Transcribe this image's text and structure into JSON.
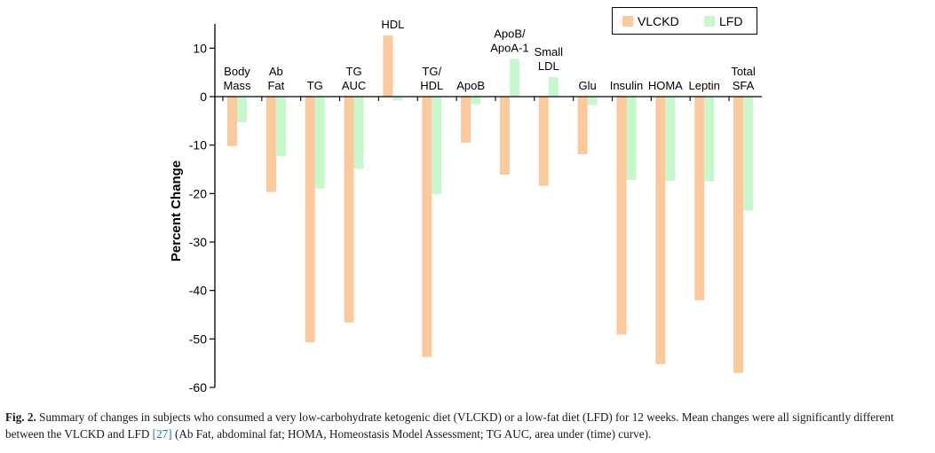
{
  "chart_data": {
    "type": "bar",
    "ylabel": "Percent Change",
    "ylim": [
      -60,
      15
    ],
    "yticks": [
      10,
      0,
      -10,
      -20,
      -30,
      -40,
      -50,
      -60
    ],
    "categories": [
      [
        "Body",
        "Mass"
      ],
      [
        "Ab",
        "Fat"
      ],
      [
        "TG"
      ],
      [
        "TG",
        "AUC"
      ],
      [
        "HDL"
      ],
      [
        "TG/",
        "HDL"
      ],
      [
        "ApoB"
      ],
      [
        "ApoB/",
        "ApoA-1"
      ],
      [
        "Small",
        "LDL"
      ],
      [
        "Glu"
      ],
      [
        "Insulin"
      ],
      [
        "HOMA"
      ],
      [
        "Leptin"
      ],
      [
        "Total",
        "SFA"
      ]
    ],
    "series": [
      {
        "name": "VLCKD",
        "color": "#fbc99b",
        "values": [
          -10.2,
          -19.7,
          -50.7,
          -46.6,
          12.6,
          -53.7,
          -9.5,
          -16.1,
          -18.4,
          -11.9,
          -49.1,
          -55.2,
          -42.0,
          -57.0
        ]
      },
      {
        "name": "LFD",
        "color": "#c7f7cd",
        "values": [
          -5.3,
          -12.3,
          -19.0,
          -14.9,
          -0.8,
          -20.1,
          -1.6,
          7.8,
          4.0,
          -1.7,
          -17.2,
          -17.4,
          -17.5,
          -23.5
        ]
      }
    ],
    "legend_position": "top-right"
  },
  "caption": {
    "label": "Fig. 2.",
    "text_before_ref": "Summary of changes in subjects who consumed a very low-carbohydrate ketogenic diet (VLCKD) or a low-fat diet (LFD) for 12 weeks. Mean changes were all significantly different between the VLCKD and LFD",
    "ref": "[27]",
    "text_after_ref": "(Ab Fat, abdominal fat; HOMA, Homeostasis Model Assessment; TG AUC, area under (time) curve)."
  }
}
